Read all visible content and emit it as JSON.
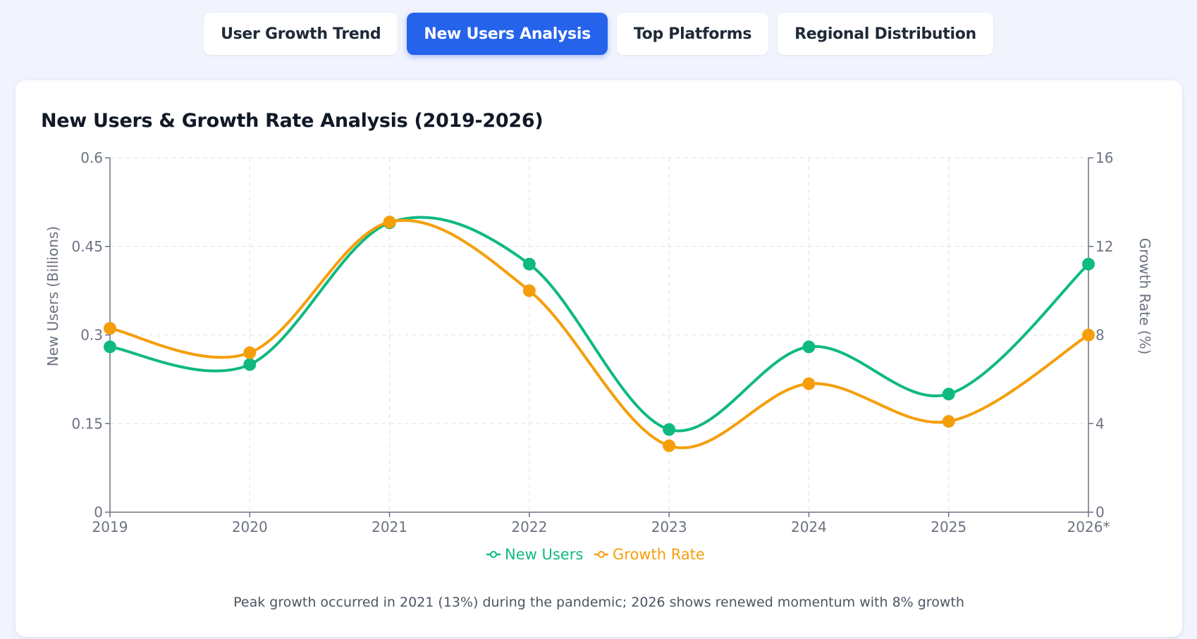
{
  "tabs": [
    {
      "label": "User Growth Trend",
      "active": false
    },
    {
      "label": "New Users Analysis",
      "active": true
    },
    {
      "label": "Top Platforms",
      "active": false
    },
    {
      "label": "Regional Distribution",
      "active": false
    }
  ],
  "card": {
    "title": "New Users & Growth Rate Analysis (2019-2026)",
    "note": "Peak growth occurred in 2021 (13%) during the pandemic; 2026 shows renewed momentum with 8% growth"
  },
  "chart_data": {
    "type": "line",
    "title": "New Users & Growth Rate Analysis (2019-2026)",
    "categories": [
      "2019",
      "2020",
      "2021",
      "2022",
      "2023",
      "2024",
      "2025",
      "2026*"
    ],
    "ylabel": "New Users (Billions)",
    "y2label": "Growth Rate (%)",
    "ylim": [
      0,
      0.6
    ],
    "y2lim": [
      0,
      16
    ],
    "yticks": [
      "0",
      "0.15",
      "0.3",
      "0.45",
      "0.6"
    ],
    "y2ticks": [
      "0",
      "4",
      "8",
      "12",
      "16"
    ],
    "grid": true,
    "legend": "bottom",
    "series": [
      {
        "name": "New Users",
        "axis": "left",
        "color": "#10b981",
        "values": [
          0.28,
          0.25,
          0.49,
          0.42,
          0.14,
          0.28,
          0.2,
          0.42
        ]
      },
      {
        "name": "Growth Rate",
        "axis": "right",
        "color": "#f59e0b",
        "values": [
          8.3,
          7.2,
          13.1,
          10.0,
          3.0,
          5.8,
          4.1,
          8.0
        ]
      }
    ]
  }
}
